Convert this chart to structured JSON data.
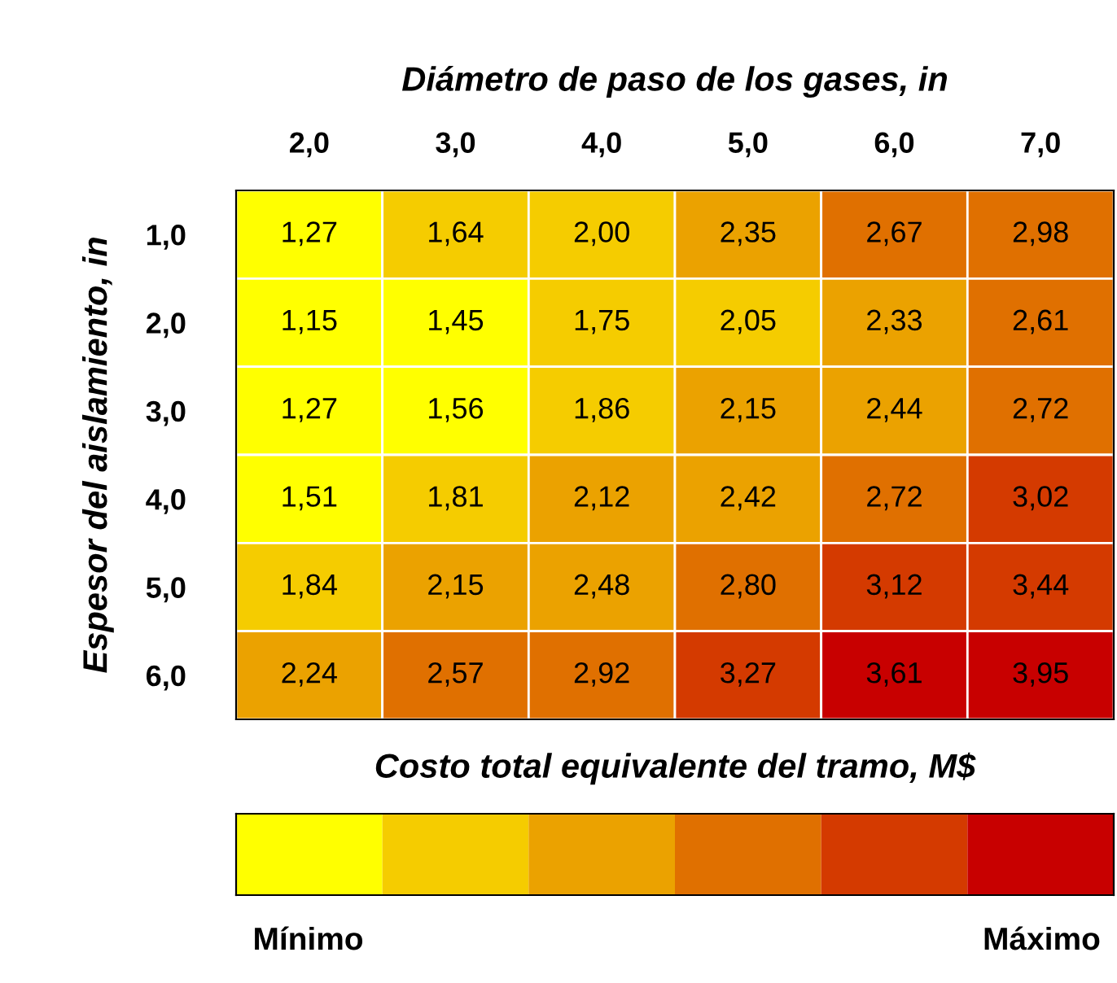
{
  "chart_data": {
    "type": "heatmap",
    "xlabel": "Diámetro de paso de los gases, in",
    "ylabel": "Espesor del aislamiento, in",
    "clabel": "Costo total equivalente del tramo, M$",
    "categories": [
      "2,0",
      "3,0",
      "4,0",
      "5,0",
      "6,0",
      "7,0"
    ],
    "y_categories": [
      "1,0",
      "2,0",
      "3,0",
      "4,0",
      "5,0",
      "6,0"
    ],
    "cells": [
      [
        1.27,
        1.64,
        2.0,
        2.35,
        2.67,
        2.98
      ],
      [
        1.15,
        1.45,
        1.75,
        2.05,
        2.33,
        2.61
      ],
      [
        1.27,
        1.56,
        1.86,
        2.15,
        2.44,
        2.72
      ],
      [
        1.51,
        1.81,
        2.12,
        2.42,
        2.72,
        3.02
      ],
      [
        1.84,
        2.15,
        2.48,
        2.8,
        3.12,
        3.44
      ],
      [
        2.24,
        2.57,
        2.92,
        3.27,
        3.61,
        3.95
      ]
    ],
    "cell_labels": [
      [
        "1,27",
        "1,64",
        "2,00",
        "2,35",
        "2,67",
        "2,98"
      ],
      [
        "1,15",
        "1,45",
        "1,75",
        "2,05",
        "2,33",
        "2,61"
      ],
      [
        "1,27",
        "1,56",
        "1,86",
        "2,15",
        "2,44",
        "2,72"
      ],
      [
        "1,51",
        "1,81",
        "2,12",
        "2,42",
        "2,72",
        "3,02"
      ],
      [
        "1,84",
        "2,15",
        "2,48",
        "2,80",
        "3,12",
        "3,44"
      ],
      [
        "2,24",
        "2,57",
        "2,92",
        "3,27",
        "3,61",
        "3,95"
      ]
    ],
    "colors": [
      "#ffff00",
      "#f5cc00",
      "#eba200",
      "#e07000",
      "#d43a00",
      "#c80000"
    ],
    "clim": [
      1.15,
      3.95
    ],
    "cticks": [
      {
        "value": 1.38,
        "label": "Mínimo"
      },
      {
        "value": 3.72,
        "label": "Máximo"
      }
    ]
  }
}
